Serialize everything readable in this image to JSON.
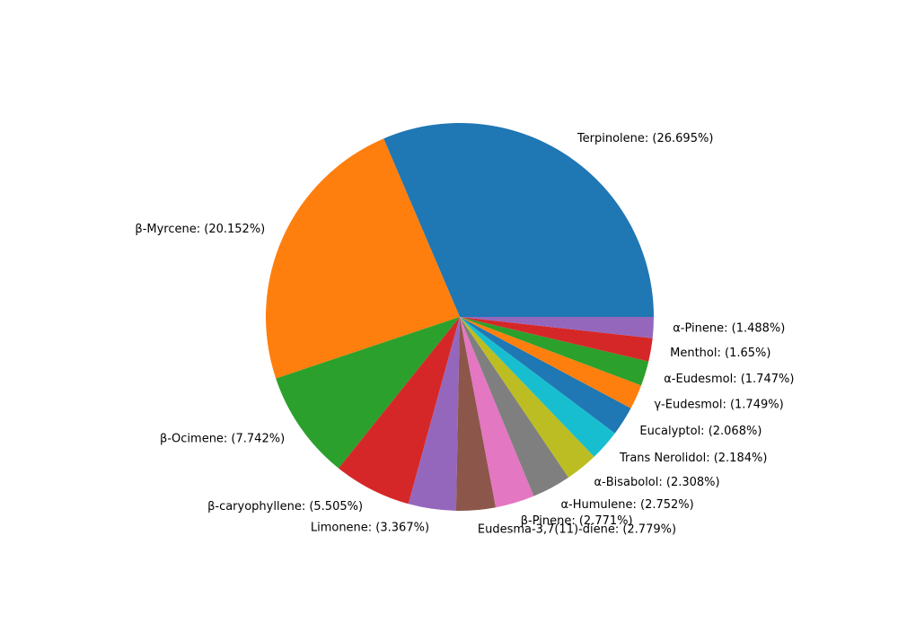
{
  "chart_data": {
    "type": "pie",
    "labels": [
      "Terpinolene: (26.695%)",
      "β-Myrcene: (20.152%)",
      "β-Ocimene: (7.742%)",
      "β-caryophyllene: (5.505%)",
      "Limonene: (3.367%)",
      "Eudesma-3,7(11)-diene: (2.779%)",
      "β-Pinene: (2.771%)",
      "α-Humulene: (2.752%)",
      "α-Bisabolol: (2.308%)",
      "Trans Nerolidol: (2.184%)",
      "Eucalyptol: (2.068%)",
      "γ-Eudesmol: (1.749%)",
      "α-Eudesmol: (1.747%)",
      "Menthol: (1.65%)",
      "α-Pinene: (1.488%)"
    ],
    "values": [
      26.695,
      20.152,
      7.742,
      5.505,
      3.367,
      2.779,
      2.771,
      2.752,
      2.308,
      2.184,
      2.068,
      1.749,
      1.747,
      1.65,
      1.488
    ],
    "colors": [
      "#1f77b4",
      "#ff7f0e",
      "#2ca02c",
      "#d62728",
      "#9467bd",
      "#8c564b",
      "#e377c2",
      "#7f7f7f",
      "#bcbd22",
      "#17becf",
      "#1f77b4",
      "#ff7f0e",
      "#2ca02c",
      "#d62728",
      "#9467bd"
    ]
  }
}
